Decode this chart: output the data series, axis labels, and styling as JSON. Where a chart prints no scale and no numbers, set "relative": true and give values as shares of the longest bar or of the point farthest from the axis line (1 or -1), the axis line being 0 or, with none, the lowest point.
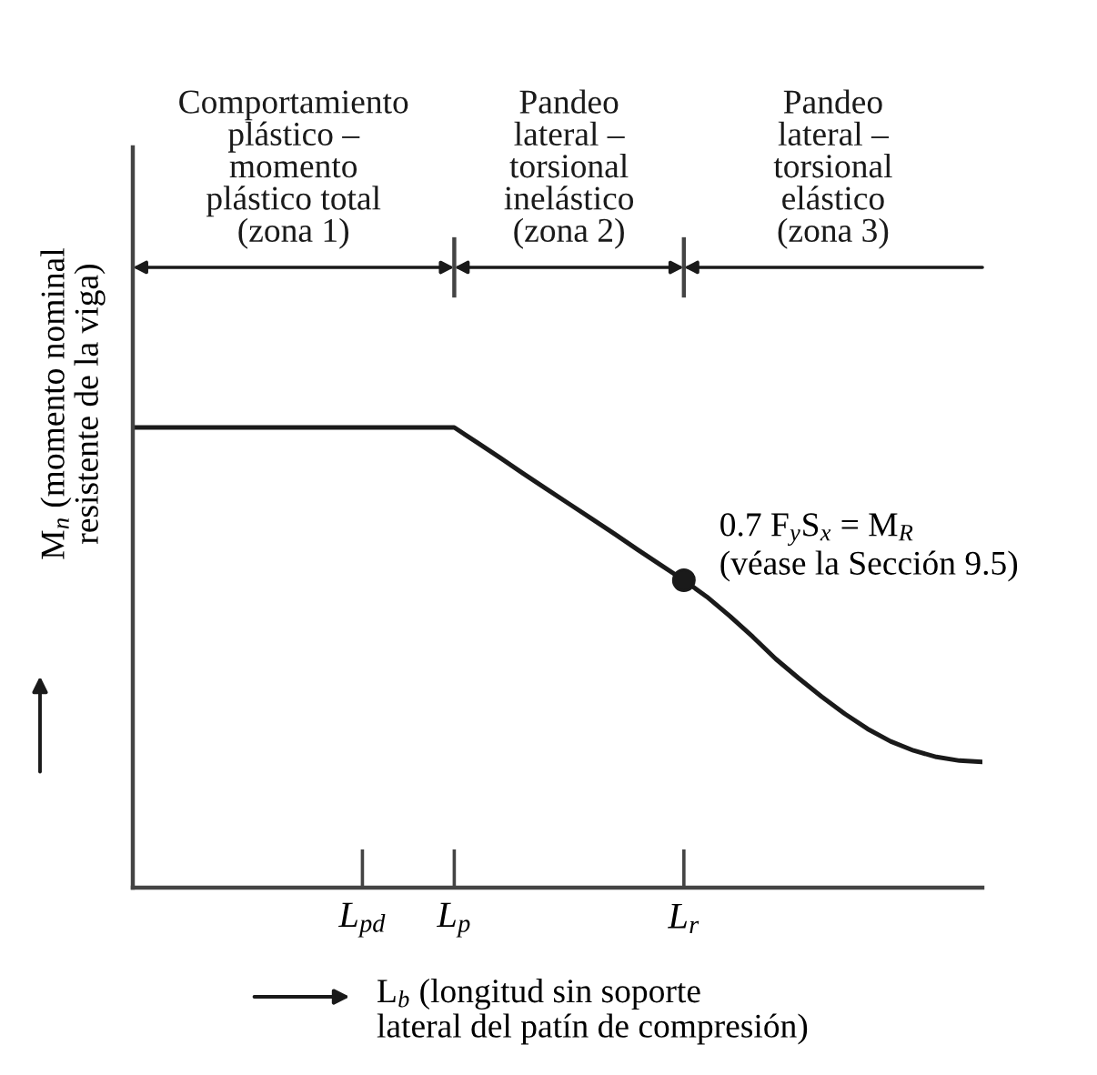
{
  "chart_data": {
    "type": "line",
    "relative": true,
    "categories": [
      null,
      null,
      null,
      null,
      null,
      null,
      null,
      null,
      null,
      null,
      "L$_{pd}$",
      null,
      null,
      null,
      "L$_{p}$",
      null,
      null,
      null,
      null,
      null,
      null,
      null,
      null,
      null,
      "L$_{r}$",
      null,
      null,
      null,
      null,
      null,
      null,
      null,
      null,
      null,
      null,
      null,
      null,
      null
    ],
    "series": [
      {
        "color": "#1a1a1a",
        "values": [
          1,
          1,
          1,
          1,
          1,
          1,
          1,
          1,
          1,
          1,
          1,
          1,
          1,
          1,
          1,
          0.967,
          0.934,
          0.9,
          0.867,
          0.834,
          0.801,
          0.768,
          0.734,
          0.701,
          0.668,
          0.632,
          0.59,
          0.545,
          0.497,
          0.455,
          0.415,
          0.378,
          0.345,
          0.318,
          0.298,
          0.284,
          0.276,
          0.273
        ]
      },
      {
        "type": "scatter",
        "marker": "circle",
        "color": "#1a1a1a",
        "values": [
          null,
          null,
          null,
          null,
          null,
          null,
          null,
          null,
          null,
          null,
          null,
          null,
          null,
          null,
          null,
          null,
          null,
          null,
          null,
          null,
          null,
          null,
          null,
          null,
          0.668,
          null,
          null,
          null,
          null,
          null,
          null,
          null,
          null,
          null,
          null,
          null,
          null,
          null
        ]
      }
    ],
    "xlabel": "L$_{b}$ (longitud sin soporte\nlateral del patín de compresión)",
    "ylabel": "M$_{n}$ (momento nominal\nresistente de la viga)",
    "annotations": [
      "Comportamiento\nplástico –\nmomento\nplástico total\n(zona 1)",
      "Pandeo\nlateral –\ntorsional\ninelástico\n(zona 2)",
      "Pandeo\nlateral –\ntorsional\nelástico\n(zona 3)",
      {
        "text": "0.7 F$_{y}$S$_{x}$ = M$_{R}$\n(véase la Sección 9.5)",
        "x": "L$_{r}$",
        "y": 0.668
      }
    ]
  }
}
